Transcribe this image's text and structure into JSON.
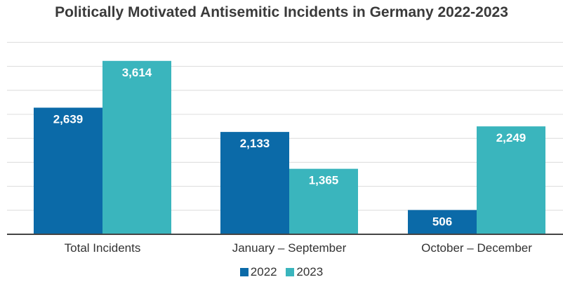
{
  "chart_data": {
    "type": "bar",
    "title": "Politically Motivated Antisemitic Incidents in Germany 2022-2023",
    "categories": [
      "Total Incidents",
      "January – September",
      "October – December"
    ],
    "series": [
      {
        "name": "2022",
        "values": [
          2639,
          2133,
          506
        ],
        "labels": [
          "2,639",
          "2,133",
          "506"
        ],
        "color": "#0b6aa8"
      },
      {
        "name": "2023",
        "values": [
          3614,
          1365,
          2249
        ],
        "labels": [
          "3,614",
          "1,365",
          "2,249"
        ],
        "color": "#3ab5bd"
      }
    ],
    "ylim": [
      0,
      4200
    ],
    "grid": true,
    "legend_position": "bottom"
  }
}
